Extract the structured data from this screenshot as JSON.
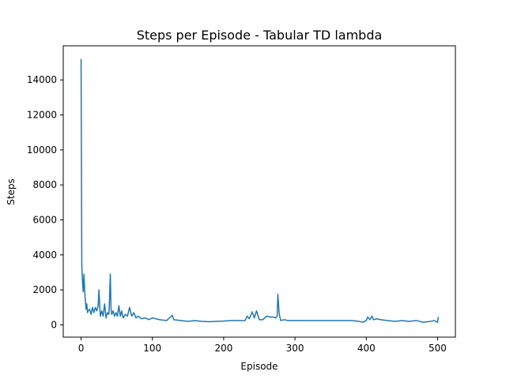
{
  "chart_data": {
    "type": "line",
    "title": "Steps per Episode - Tabular TD lambda",
    "xlabel": "Episode",
    "ylabel": "Steps",
    "xlim": [
      -25,
      525
    ],
    "ylim": [
      -700,
      15950
    ],
    "xticks": [
      0,
      100,
      200,
      300,
      400,
      500
    ],
    "yticks": [
      0,
      2000,
      4000,
      6000,
      8000,
      10000,
      12000,
      14000
    ],
    "grid": false,
    "legend": "none",
    "series": [
      {
        "color": "#1f77b4",
        "x": [
          0,
          1,
          2,
          3,
          4,
          5,
          6,
          7,
          8,
          9,
          10,
          12,
          14,
          16,
          18,
          20,
          22,
          24,
          25,
          27,
          29,
          31,
          33,
          35,
          37,
          39,
          40,
          41,
          42,
          43,
          45,
          47,
          49,
          51,
          53,
          55,
          57,
          59,
          62,
          65,
          68,
          71,
          74,
          77,
          80,
          85,
          90,
          95,
          100,
          110,
          120,
          128,
          130,
          140,
          150,
          160,
          170,
          180,
          190,
          200,
          210,
          220,
          230,
          233,
          236,
          240,
          243,
          246,
          250,
          255,
          260,
          265,
          270,
          273,
          275,
          276,
          277,
          278,
          280,
          285,
          290,
          300,
          310,
          320,
          330,
          340,
          350,
          360,
          370,
          380,
          390,
          395,
          400,
          402,
          405,
          408,
          410,
          415,
          420,
          430,
          440,
          450,
          460,
          470,
          480,
          490,
          495,
          500,
          501
        ],
        "y": [
          15200,
          3400,
          2500,
          1900,
          2900,
          2000,
          1400,
          900,
          1200,
          700,
          800,
          900,
          600,
          1000,
          700,
          1000,
          800,
          1100,
          2000,
          500,
          800,
          500,
          1200,
          400,
          700,
          600,
          1600,
          2900,
          900,
          600,
          800,
          500,
          700,
          500,
          1100,
          500,
          800,
          400,
          600,
          500,
          1000,
          500,
          700,
          400,
          500,
          350,
          400,
          300,
          400,
          300,
          250,
          550,
          300,
          250,
          200,
          250,
          200,
          180,
          200,
          220,
          250,
          250,
          250,
          500,
          350,
          750,
          400,
          800,
          300,
          300,
          500,
          450,
          450,
          400,
          500,
          1750,
          1100,
          600,
          250,
          300,
          250,
          250,
          250,
          250,
          250,
          250,
          250,
          250,
          250,
          250,
          200,
          150,
          250,
          450,
          300,
          500,
          300,
          350,
          300,
          250,
          200,
          250,
          200,
          250,
          150,
          200,
          250,
          150,
          450
        ]
      }
    ]
  }
}
